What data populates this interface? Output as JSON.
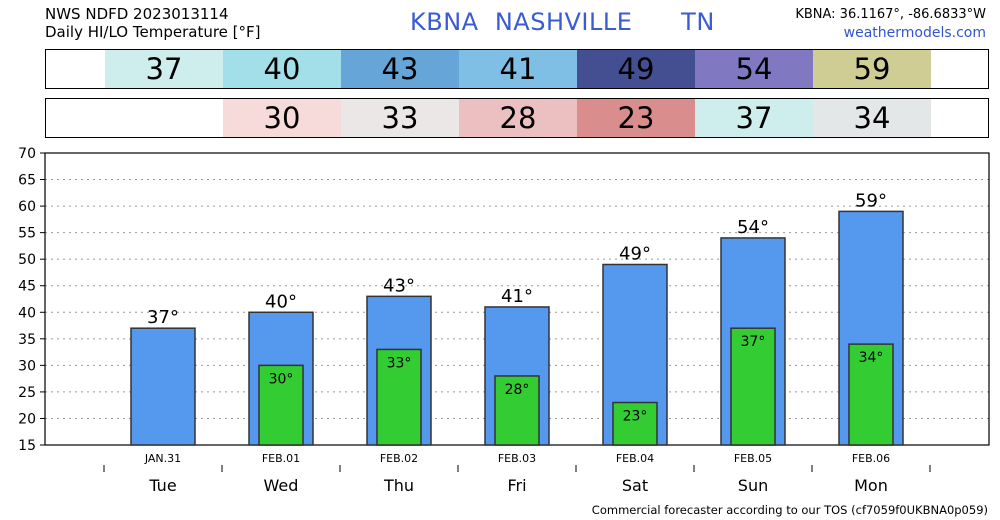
{
  "header": {
    "line1": "NWS NDFD 2023013114",
    "line2": "Daily HI/LO Temperature [°F]",
    "station_line": "KBNA  NASHVILLE      TN",
    "coords": "KBNA: 36.1167°, -86.6833°W",
    "site": "weathermodels.com"
  },
  "strips": {
    "hi": [
      {
        "text": "37",
        "color": "#cdeeed"
      },
      {
        "text": "40",
        "color": "#a3dfe9"
      },
      {
        "text": "43",
        "color": "#66a5d8"
      },
      {
        "text": "41",
        "color": "#7fbfe5"
      },
      {
        "text": "49",
        "color": "#444f91"
      },
      {
        "text": "54",
        "color": "#8079c2"
      },
      {
        "text": "59",
        "color": "#cfcc94"
      }
    ],
    "lo": [
      {
        "text": "30",
        "color": "#f7dbdb"
      },
      {
        "text": "33",
        "color": "#ece7e7"
      },
      {
        "text": "28",
        "color": "#ecc0c0"
      },
      {
        "text": "23",
        "color": "#d98d8d"
      },
      {
        "text": "37",
        "color": "#cdeeed"
      },
      {
        "text": "34",
        "color": "#e4e7e7"
      }
    ]
  },
  "chart_data": {
    "type": "bar",
    "categories": [
      "JAN.31",
      "FEB.01",
      "FEB.02",
      "FEB.03",
      "FEB.04",
      "FEB.05",
      "FEB.06"
    ],
    "days": [
      "Tue",
      "Wed",
      "Thu",
      "Fri",
      "Sat",
      "Sun",
      "Mon"
    ],
    "series": [
      {
        "values": [
          37,
          40,
          43,
          41,
          49,
          54,
          59
        ],
        "color": "#5599ee"
      },
      {
        "values": [
          null,
          30,
          33,
          28,
          23,
          37,
          34
        ],
        "color": "#33cc33"
      }
    ],
    "hi_labels": [
      "37°",
      "40°",
      "43°",
      "41°",
      "49°",
      "54°",
      "59°"
    ],
    "lo_labels": [
      "",
      "30°",
      "33°",
      "28°",
      "23°",
      "37°",
      "34°"
    ],
    "yticks": [
      "15",
      "20",
      "25",
      "30",
      "35",
      "40",
      "45",
      "50",
      "55",
      "60",
      "65",
      "70"
    ],
    "ylim": [
      15,
      70
    ],
    "grid": true
  },
  "footer": "Commercial forecaster according to our TOS (cf7059f0UKBNA0p059)"
}
